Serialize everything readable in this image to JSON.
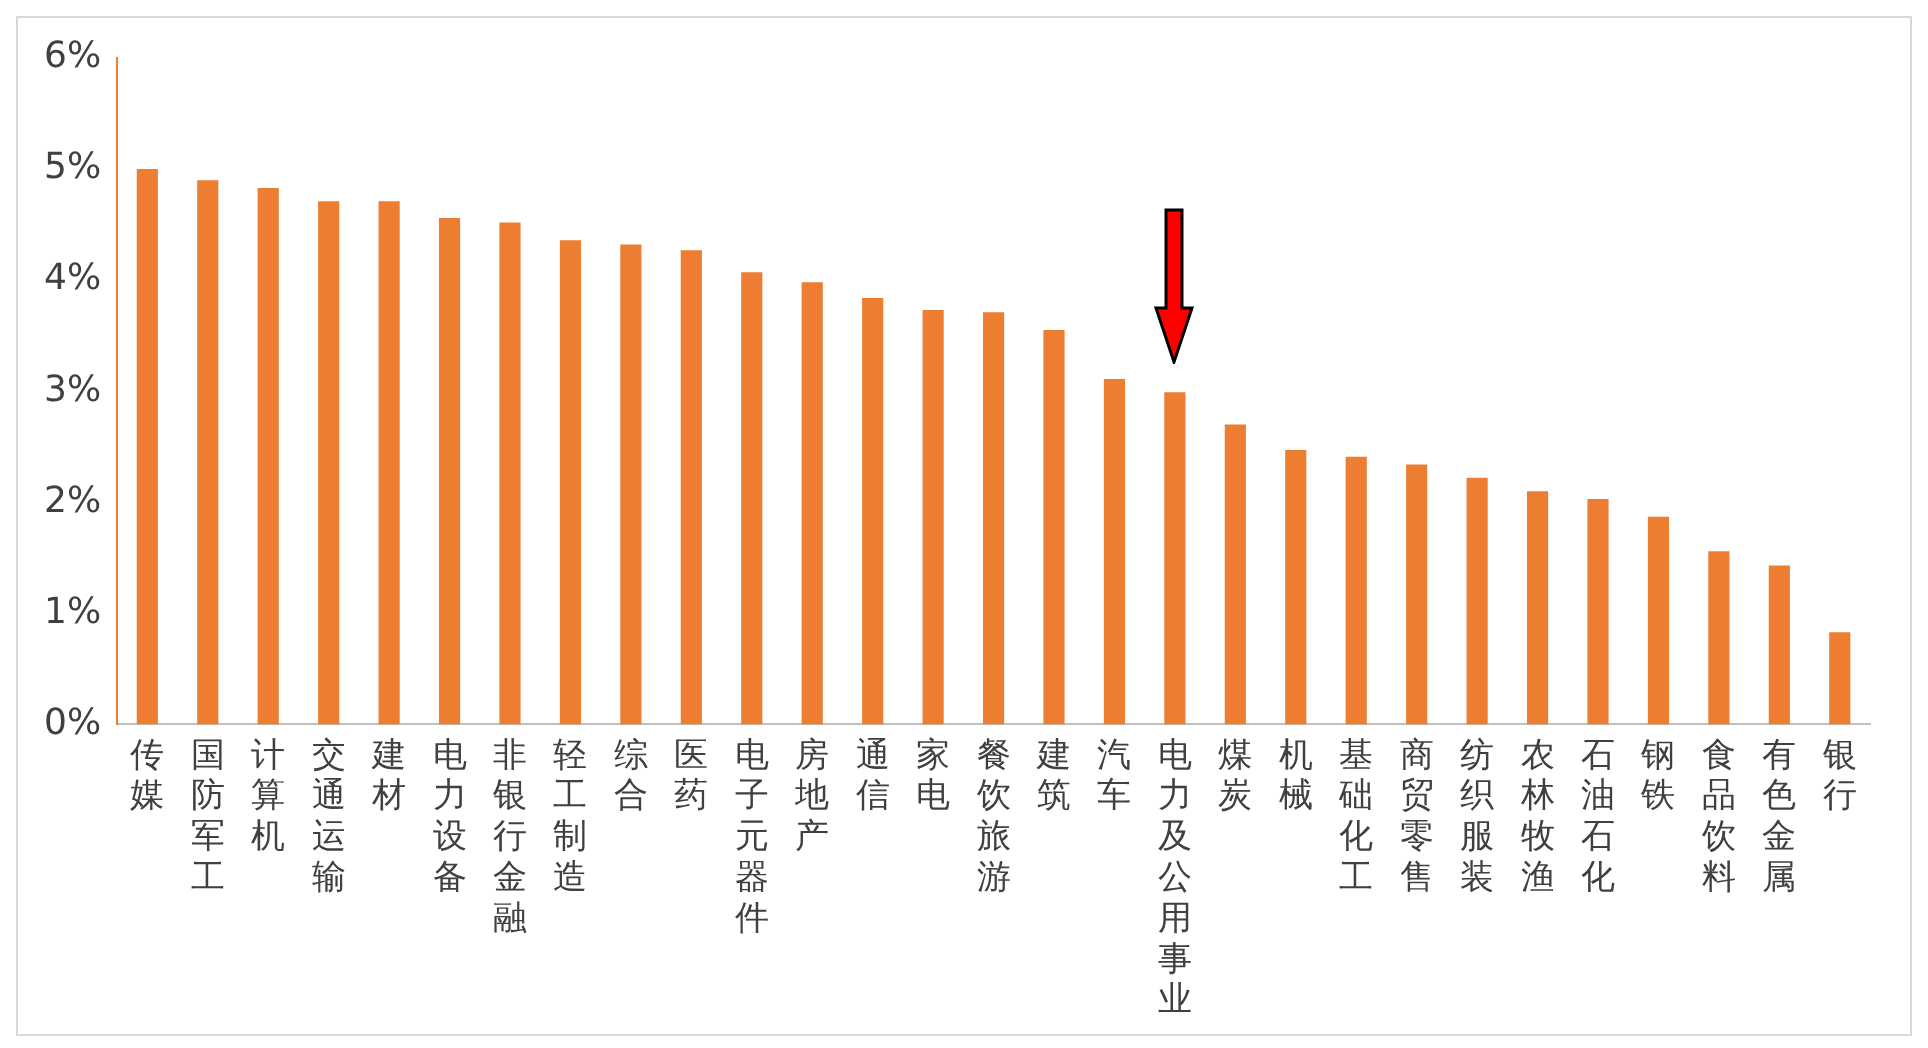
{
  "chart_data": {
    "type": "bar",
    "categories": [
      "传媒",
      "国防军工",
      "计算机",
      "交通运输",
      "建材",
      "电力设备",
      "非银行金融",
      "轻工制造",
      "综合",
      "医药",
      "电子元器件",
      "房地产",
      "通信",
      "家电",
      "餐饮旅游",
      "建筑",
      "汽车",
      "电力及公用事业",
      "煤炭",
      "机械",
      "基础化工",
      "商贸零售",
      "纺织服装",
      "农林牧渔",
      "石油石化",
      "钢铁",
      "食品饮料",
      "有色金属",
      "银行"
    ],
    "values": [
      5.0,
      4.9,
      4.83,
      4.71,
      4.71,
      4.56,
      4.52,
      4.36,
      4.32,
      4.27,
      4.07,
      3.98,
      3.84,
      3.73,
      3.71,
      3.55,
      3.11,
      2.99,
      2.7,
      2.47,
      2.41,
      2.34,
      2.22,
      2.1,
      2.03,
      1.87,
      1.56,
      1.43,
      0.83
    ],
    "color": "#ed7d31",
    "ylim": [
      0,
      6
    ],
    "yticks": [
      {
        "value": 0,
        "label": "0%"
      },
      {
        "value": 1,
        "label": "1%"
      },
      {
        "value": 2,
        "label": "2%"
      },
      {
        "value": 3,
        "label": "3%"
      },
      {
        "value": 4,
        "label": "4%"
      },
      {
        "value": 5,
        "label": "5%"
      },
      {
        "value": 6,
        "label": "6%"
      }
    ],
    "grid": false,
    "legend": false
  }
}
